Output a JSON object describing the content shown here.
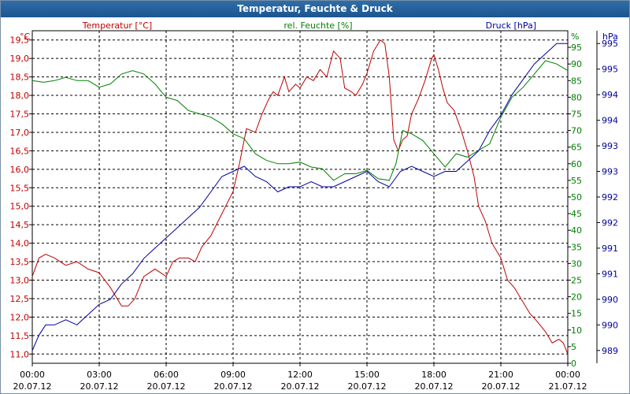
{
  "window": {
    "title": "Temperatur, Feuchte & Druck"
  },
  "chart_data": {
    "type": "line",
    "title": "Temperatur, Feuchte & Druck",
    "x": [
      "00:00",
      "03:00",
      "06:00",
      "09:00",
      "12:00",
      "15:00",
      "18:00",
      "21:00",
      "00:00"
    ],
    "x_dates": [
      "20.07.12",
      "20.07.12",
      "20.07.12",
      "20.07.12",
      "20.07.12",
      "20.07.12",
      "20.07.12",
      "20.07.12",
      "21.07.12"
    ],
    "x_hours": [
      0,
      3,
      6,
      9,
      12,
      15,
      18,
      21,
      24
    ],
    "grid": true,
    "axes": {
      "temperature": {
        "unit": "°C",
        "label": "Temperatur [°C]",
        "color": "#c00000",
        "ylim": [
          10.75,
          19.75
        ],
        "ticks": [
          "11,0",
          "11,5",
          "12,0",
          "12,5",
          "13,0",
          "13,5",
          "14,0",
          "14,5",
          "15,0",
          "15,5",
          "16,0",
          "16,5",
          "17,0",
          "17,5",
          "18,0",
          "18,5",
          "19,0",
          "19,5"
        ],
        "tick_values": [
          11,
          11.5,
          12,
          12.5,
          13,
          13.5,
          14,
          14.5,
          15,
          15.5,
          16,
          16.5,
          17,
          17.5,
          18,
          18.5,
          19,
          19.5
        ]
      },
      "humidity": {
        "unit": "%",
        "label": "rel. Feuchte [%]",
        "color": "#008000",
        "ylim": [
          0,
          100
        ],
        "ticks": [
          "0",
          "5",
          "10",
          "15",
          "20",
          "25",
          "30",
          "35",
          "40",
          "45",
          "50",
          "55",
          "60",
          "65",
          "70",
          "75",
          "80",
          "85",
          "90",
          "95"
        ],
        "tick_values": [
          0,
          5,
          10,
          15,
          20,
          25,
          30,
          35,
          40,
          45,
          50,
          55,
          60,
          65,
          70,
          75,
          80,
          85,
          90,
          95
        ]
      },
      "pressure": {
        "unit": "hPa",
        "label": "Druck [hPa]",
        "color": "#00009c",
        "ylim": [
          988.75,
          995.25
        ],
        "ticks": [
          "989",
          "990",
          "990",
          "991",
          "991",
          "992",
          "992",
          "993",
          "993",
          "994",
          "994",
          "995",
          "995"
        ],
        "tick_values": [
          989,
          989.5,
          990,
          990.5,
          991,
          991.5,
          992,
          992.5,
          993,
          993.5,
          994,
          994.5,
          995
        ]
      }
    },
    "series": [
      {
        "name": "Temperatur",
        "axis": "temperature",
        "color": "#c00000",
        "x": [
          0,
          0.3,
          0.6,
          1,
          1.5,
          2,
          2.5,
          3,
          3.5,
          4,
          4.3,
          4.6,
          5,
          5.5,
          6,
          6.3,
          6.6,
          7,
          7.3,
          7.6,
          8,
          8.5,
          9,
          9.3,
          9.6,
          10,
          10.3,
          10.6,
          10.8,
          11,
          11.3,
          11.5,
          11.8,
          12,
          12.3,
          12.6,
          12.9,
          13.2,
          13.5,
          13.8,
          14,
          14.3,
          14.5,
          14.8,
          15,
          15.3,
          15.6,
          15.8,
          16,
          16.2,
          16.4,
          16.6,
          16.8,
          17,
          17.3,
          17.6,
          17.9,
          18,
          18.2,
          18.4,
          18.6,
          18.9,
          19.2,
          19.5,
          19.8,
          20,
          20.3,
          20.6,
          21,
          21.3,
          21.6,
          22,
          22.3,
          22.6,
          23,
          23.3,
          23.6,
          23.8,
          24
        ],
        "values": [
          13.1,
          13.6,
          13.7,
          13.6,
          13.4,
          13.5,
          13.3,
          13.2,
          12.8,
          12.3,
          12.3,
          12.5,
          13.1,
          13.3,
          13.1,
          13.5,
          13.6,
          13.6,
          13.5,
          13.9,
          14.2,
          14.8,
          15.4,
          16.2,
          17.1,
          17.0,
          17.5,
          17.9,
          18.1,
          18.0,
          18.5,
          18.1,
          18.3,
          18.2,
          18.5,
          18.4,
          18.7,
          18.5,
          19.2,
          19.0,
          18.2,
          18.1,
          18.0,
          18.3,
          18.6,
          19.2,
          19.5,
          19.4,
          18.5,
          16.8,
          16.5,
          16.8,
          16.9,
          17.5,
          17.9,
          18.4,
          19.0,
          19.1,
          18.7,
          18.2,
          17.8,
          17.6,
          17.1,
          16.5,
          15.8,
          15.0,
          14.6,
          14.0,
          13.6,
          13.0,
          12.8,
          12.4,
          12.1,
          11.9,
          11.6,
          11.3,
          11.4,
          11.3,
          11.0
        ]
      },
      {
        "name": "rel. Feuchte",
        "axis": "humidity",
        "color": "#008000",
        "x": [
          0,
          0.5,
          1,
          1.5,
          2,
          2.5,
          3,
          3.5,
          4,
          4.5,
          5,
          5.5,
          6,
          6.5,
          7,
          7.5,
          8,
          8.5,
          9,
          9.5,
          10,
          10.5,
          11,
          11.5,
          12,
          12.5,
          13,
          13.5,
          14,
          14.5,
          15,
          15.5,
          16,
          16.3,
          16.6,
          17,
          17.5,
          18,
          18.5,
          19,
          19.5,
          20,
          20.5,
          21,
          21.5,
          22,
          22.5,
          23,
          23.5,
          24
        ],
        "values": [
          85,
          84.5,
          85,
          86,
          85,
          85,
          83,
          84,
          87,
          88,
          87,
          84,
          80,
          79,
          76,
          75,
          74,
          72,
          69,
          67.5,
          63,
          61,
          60,
          60,
          60.5,
          59,
          58.5,
          55,
          57,
          57,
          58,
          55.5,
          55,
          60,
          70,
          69,
          67,
          63,
          59,
          63,
          62,
          64,
          66,
          74,
          80,
          83,
          87,
          91,
          90,
          88
        ]
      },
      {
        "name": "Druck",
        "axis": "pressure",
        "color": "#00009c",
        "x": [
          0,
          0.3,
          0.6,
          1,
          1.5,
          2,
          2.5,
          3,
          3.5,
          4,
          4.5,
          5,
          5.5,
          6,
          6.5,
          7,
          7.5,
          8,
          8.5,
          9,
          9.5,
          10,
          10.5,
          11,
          11.5,
          12,
          12.5,
          13,
          13.5,
          14,
          14.5,
          15,
          15.5,
          16,
          16.5,
          17,
          17.5,
          18,
          18.5,
          19,
          19.5,
          20,
          20.5,
          21,
          21.5,
          22,
          22.5,
          23,
          23.5,
          24
        ],
        "values": [
          989.0,
          989.3,
          989.5,
          989.5,
          989.6,
          989.5,
          989.7,
          989.9,
          990.0,
          990.3,
          990.5,
          990.8,
          991.0,
          991.2,
          991.4,
          991.6,
          991.8,
          992.1,
          992.4,
          992.5,
          992.6,
          992.4,
          992.3,
          992.1,
          992.2,
          992.2,
          992.3,
          992.2,
          992.2,
          992.3,
          992.4,
          992.5,
          992.3,
          992.2,
          992.5,
          992.6,
          992.5,
          992.4,
          992.5,
          992.5,
          992.7,
          992.9,
          993.3,
          993.6,
          994.0,
          994.3,
          994.6,
          994.8,
          995.0,
          995.0
        ]
      }
    ]
  }
}
